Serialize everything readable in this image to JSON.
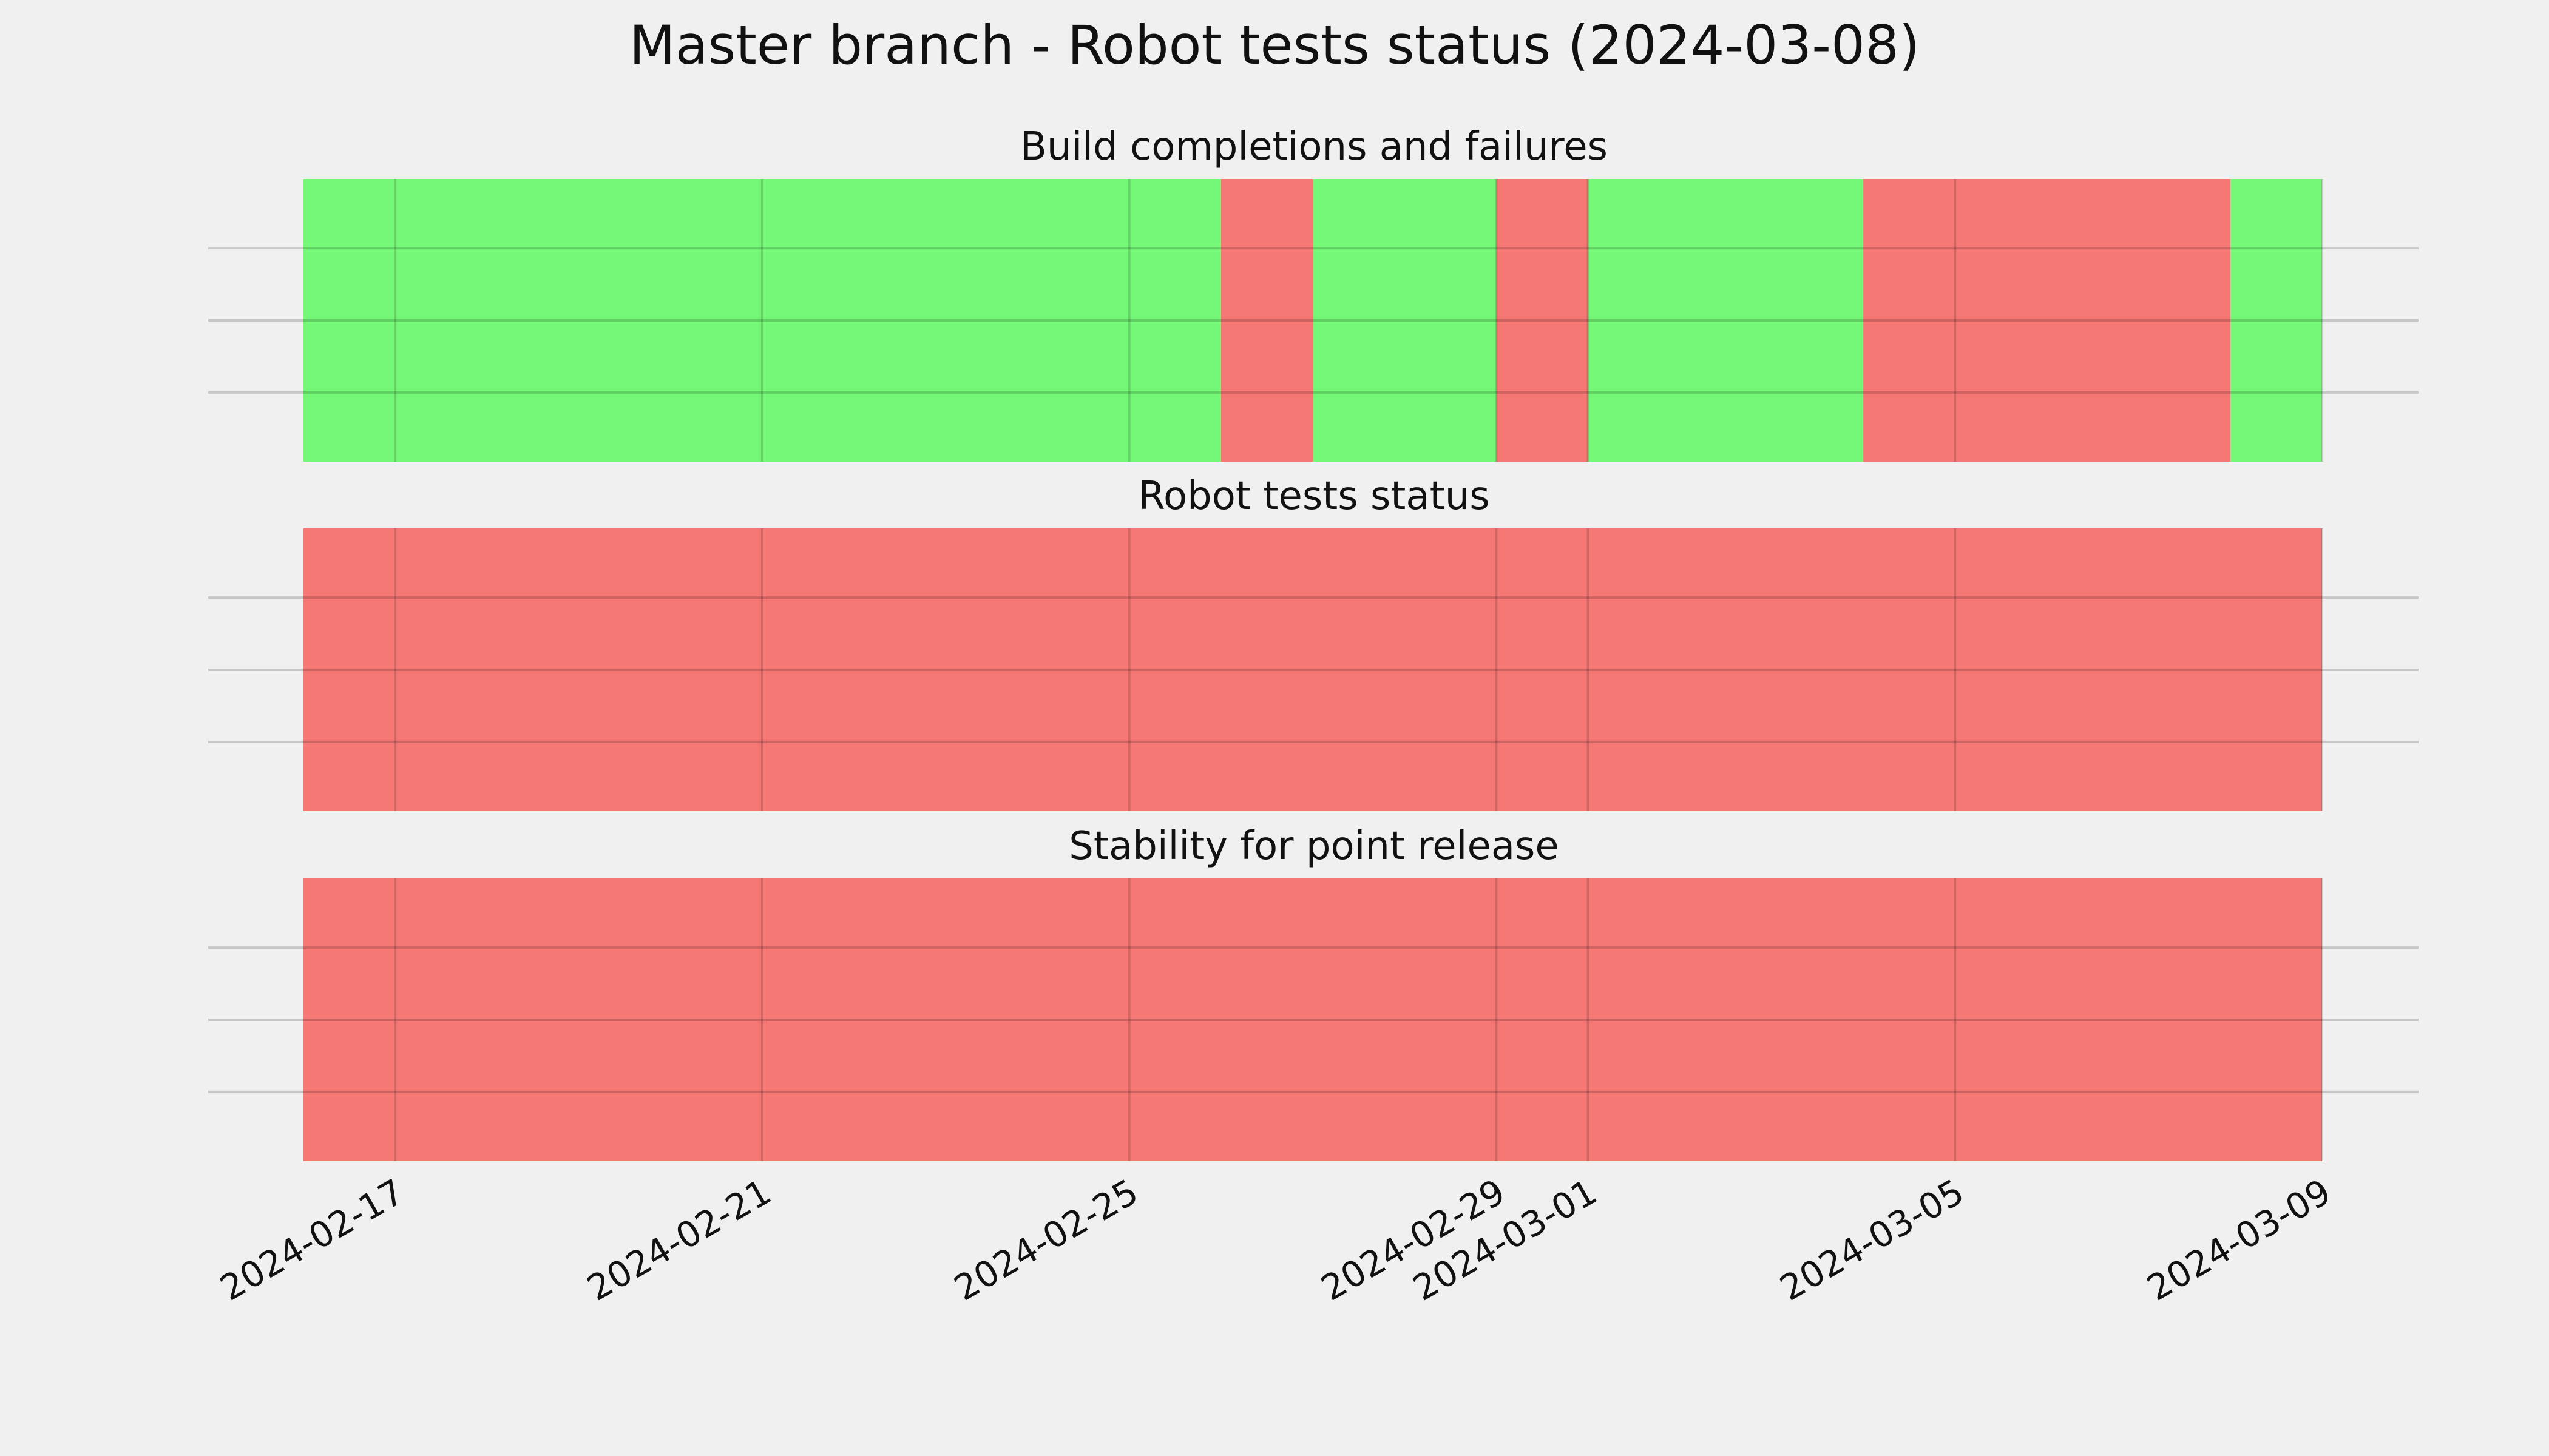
{
  "chart_data": {
    "type": "timeline",
    "title": "Master branch - Robot tests status (2024-03-08)",
    "x_range": [
      "2024-02-16",
      "2024-03-09"
    ],
    "x_ticks": [
      "2024-02-17",
      "2024-02-21",
      "2024-02-25",
      "2024-02-29",
      "2024-03-01",
      "2024-03-05",
      "2024-03-09"
    ],
    "status_colors": {
      "pass": "#75f878",
      "fail": "#f67875"
    },
    "panels": [
      {
        "title": "Build completions and failures",
        "segments": [
          {
            "start": "2024-02-16",
            "end": "2024-02-26",
            "status": "pass"
          },
          {
            "start": "2024-02-26",
            "end": "2024-02-27",
            "status": "fail"
          },
          {
            "start": "2024-02-27",
            "end": "2024-02-29",
            "status": "pass"
          },
          {
            "start": "2024-02-29",
            "end": "2024-03-01",
            "status": "fail"
          },
          {
            "start": "2024-03-01",
            "end": "2024-03-04",
            "status": "pass"
          },
          {
            "start": "2024-03-04",
            "end": "2024-03-08",
            "status": "fail"
          },
          {
            "start": "2024-03-08",
            "end": "2024-03-09",
            "status": "pass"
          }
        ]
      },
      {
        "title": "Robot tests status",
        "segments": [
          {
            "start": "2024-02-16",
            "end": "2024-03-09",
            "status": "fail"
          }
        ]
      },
      {
        "title": "Stability for point release",
        "segments": [
          {
            "start": "2024-02-16",
            "end": "2024-03-09",
            "status": "fail"
          }
        ]
      }
    ]
  }
}
